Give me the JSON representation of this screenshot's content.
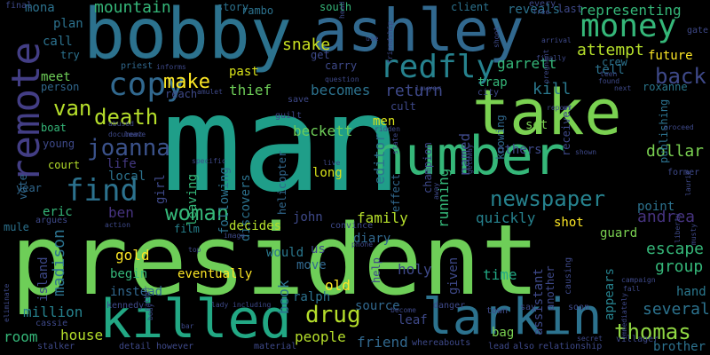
{
  "words": [
    {
      "text": "man",
      "color": "#1f9e89"
    },
    {
      "text": "president",
      "color": "#6ece58"
    },
    {
      "text": "bobby",
      "color": "#2c728e"
    },
    {
      "text": "ashley",
      "color": "#31688e"
    },
    {
      "text": "take",
      "color": "#7ad151"
    },
    {
      "text": "number",
      "color": "#35b779"
    },
    {
      "text": "killed",
      "color": "#22a884"
    },
    {
      "text": "larkin",
      "color": "#2c728e"
    },
    {
      "text": "remote",
      "color": "#433e85"
    },
    {
      "text": "redfly",
      "color": "#26828e"
    },
    {
      "text": "money",
      "color": "#35b779"
    },
    {
      "text": "copy",
      "color": "#31688e"
    },
    {
      "text": "find",
      "color": "#2c728e"
    },
    {
      "text": "make",
      "color": "#fde725"
    },
    {
      "text": "joanna",
      "color": "#3b528b"
    },
    {
      "text": "death",
      "color": "#b5de2b"
    },
    {
      "text": "van",
      "color": "#b5de2b"
    },
    {
      "text": "woman",
      "color": "#35b779"
    },
    {
      "text": "newspaper",
      "color": "#26828e"
    },
    {
      "text": "thomas",
      "color": "#90d743"
    },
    {
      "text": "drug",
      "color": "#b5de2b"
    },
    {
      "text": "back",
      "color": "#3e4989"
    },
    {
      "text": "mountain",
      "color": "#35b779"
    },
    {
      "text": "representing",
      "color": "#35b779"
    },
    {
      "text": "attempt",
      "color": "#b5de2b"
    },
    {
      "text": "snake",
      "color": "#c8e020"
    },
    {
      "text": "garrett",
      "color": "#35b779"
    },
    {
      "text": "past",
      "color": "#d8e219"
    },
    {
      "text": "thief",
      "color": "#6ece58"
    },
    {
      "text": "becomes",
      "color": "#2c728e"
    },
    {
      "text": "return",
      "color": "#3e4989"
    },
    {
      "text": "trap",
      "color": "#35b779"
    },
    {
      "text": "kill",
      "color": "#2a788e"
    },
    {
      "text": "meet",
      "color": "#6ece58"
    },
    {
      "text": "life",
      "color": "#443983"
    },
    {
      "text": "local",
      "color": "#2c728e"
    },
    {
      "text": "beckett",
      "color": "#6ece58"
    },
    {
      "text": "editor",
      "color": "#2c728e"
    },
    {
      "text": "running",
      "color": "#35b779"
    },
    {
      "text": "named",
      "color": "#3e4989"
    },
    {
      "text": "others",
      "color": "#3e4989"
    },
    {
      "text": "dollar",
      "color": "#7ad151"
    },
    {
      "text": "quickly",
      "color": "#26828e"
    },
    {
      "text": "family",
      "color": "#b5de2b"
    },
    {
      "text": "andrea",
      "color": "#46337f"
    },
    {
      "text": "escape",
      "color": "#35b779"
    },
    {
      "text": "ben",
      "color": "#46337f"
    },
    {
      "text": "eric",
      "color": "#35b779"
    },
    {
      "text": "madison",
      "color": "#2c728e"
    },
    {
      "text": "gold",
      "color": "#fde725"
    },
    {
      "text": "island",
      "color": "#3e4989"
    },
    {
      "text": "begin",
      "color": "#35b779"
    },
    {
      "text": "instead",
      "color": "#31688e"
    },
    {
      "text": "million",
      "color": "#26828e"
    },
    {
      "text": "house",
      "color": "#b5de2b"
    },
    {
      "text": "room",
      "color": "#35b779"
    },
    {
      "text": "people",
      "color": "#b5de2b"
    },
    {
      "text": "friend",
      "color": "#31688e"
    },
    {
      "text": "book",
      "color": "#2c728e"
    },
    {
      "text": "ralph",
      "color": "#2c728e"
    },
    {
      "text": "old",
      "color": "#fde725"
    },
    {
      "text": "holy",
      "color": "#3e4989"
    },
    {
      "text": "time",
      "color": "#22a884"
    },
    {
      "text": "appears",
      "color": "#26828e"
    },
    {
      "text": "several",
      "color": "#2c728e"
    },
    {
      "text": "group",
      "color": "#35b779"
    },
    {
      "text": "hand",
      "color": "#2a788e"
    },
    {
      "text": "girl",
      "color": "#3e4989"
    },
    {
      "text": "leaving",
      "color": "#35b779"
    },
    {
      "text": "discovers",
      "color": "#2c728e"
    },
    {
      "text": "following",
      "color": "#2c728e"
    },
    {
      "text": "john",
      "color": "#3e4989"
    },
    {
      "text": "long",
      "color": "#d8e219"
    },
    {
      "text": "eventually",
      "color": "#fde725"
    },
    {
      "text": "shot",
      "color": "#fde725"
    },
    {
      "text": "future",
      "color": "#fde725"
    },
    {
      "text": "roxanne",
      "color": "#2a788e"
    },
    {
      "text": "tell",
      "color": "#2c728e"
    },
    {
      "text": "crew",
      "color": "#2c728e"
    },
    {
      "text": "plan",
      "color": "#2c728e"
    },
    {
      "text": "call",
      "color": "#2c728e"
    },
    {
      "text": "try",
      "color": "#2c728e"
    },
    {
      "text": "mona",
      "color": "#2c728e"
    },
    {
      "text": "boat",
      "color": "#35b779"
    },
    {
      "text": "person",
      "color": "#31688e"
    },
    {
      "text": "young",
      "color": "#3e4989"
    },
    {
      "text": "court",
      "color": "#b5de2b"
    },
    {
      "text": "vote",
      "color": "#31688e"
    },
    {
      "text": "year",
      "color": "#31688e"
    },
    {
      "text": "mule",
      "color": "#2c728e"
    },
    {
      "text": "film",
      "color": "#26828e"
    },
    {
      "text": "decides",
      "color": "#b5de2b"
    },
    {
      "text": "would",
      "color": "#2a788e"
    },
    {
      "text": "move",
      "color": "#31688e"
    },
    {
      "text": "diary",
      "color": "#31688e"
    },
    {
      "text": "us",
      "color": "#3e4989"
    },
    {
      "text": "source",
      "color": "#31688e"
    },
    {
      "text": "leaf",
      "color": "#3e4989"
    },
    {
      "text": "bag",
      "color": "#7ad151"
    },
    {
      "text": "given",
      "color": "#3e4989"
    },
    {
      "text": "assistant",
      "color": "#3e4989"
    },
    {
      "text": "guard",
      "color": "#7ad151"
    },
    {
      "text": "point",
      "color": "#2c728e"
    },
    {
      "text": "brother",
      "color": "#2c728e"
    },
    {
      "text": "story",
      "color": "#2c728e"
    },
    {
      "text": "rambo",
      "color": "#2c728e"
    },
    {
      "text": "south",
      "color": "#35b779"
    },
    {
      "text": "client",
      "color": "#2c728e"
    },
    {
      "text": "reveals",
      "color": "#2c728e"
    },
    {
      "text": "last",
      "color": "#3e4989"
    },
    {
      "text": "get",
      "color": "#3e4989"
    },
    {
      "text": "carry",
      "color": "#3e4989"
    },
    {
      "text": "cult",
      "color": "#3e4989"
    },
    {
      "text": "men",
      "color": "#d8e219"
    },
    {
      "text": "reach",
      "color": "#3e4989"
    },
    {
      "text": "priest",
      "color": "#31688e"
    },
    {
      "text": "save",
      "color": "#3e4989"
    },
    {
      "text": "guilt",
      "color": "#3e4989"
    },
    {
      "text": "city",
      "color": "#3e4989"
    },
    {
      "text": "set",
      "color": "#7ad151"
    },
    {
      "text": "knowing",
      "color": "#31688e"
    },
    {
      "text": "receives",
      "color": "#3e4989"
    },
    {
      "text": "champion",
      "color": "#3e4989"
    },
    {
      "text": "effect",
      "color": "#31688e"
    },
    {
      "text": "state",
      "color": "#3e4989"
    },
    {
      "text": "helicopter",
      "color": "#31688e"
    },
    {
      "text": "help",
      "color": "#3e4989"
    },
    {
      "text": "causing",
      "color": "#3e4989"
    },
    {
      "text": "another",
      "color": "#3e4989"
    },
    {
      "text": "publishing",
      "color": "#2c728e"
    },
    {
      "text": "town",
      "color": "#3e4989"
    },
    {
      "text": "soon",
      "color": "#3e4989"
    },
    {
      "text": "say",
      "color": "#3e4989"
    },
    {
      "text": "lead",
      "color": "#3e4989"
    },
    {
      "text": "also",
      "color": "#3e4989"
    },
    {
      "text": "relationship",
      "color": "#3e4989"
    },
    {
      "text": "villager",
      "color": "#3e4989"
    },
    {
      "text": "secret",
      "color": "#3e4989"
    },
    {
      "text": "former",
      "color": "#3e4989"
    },
    {
      "text": "whereabouts",
      "color": "#3e4989"
    },
    {
      "text": "material",
      "color": "#3e4989"
    },
    {
      "text": "detail",
      "color": "#3e4989"
    },
    {
      "text": "however",
      "color": "#3e4989"
    },
    {
      "text": "stalker",
      "color": "#3e4989"
    },
    {
      "text": "cassie",
      "color": "#3e4989"
    },
    {
      "text": "kennedy",
      "color": "#3e4989"
    },
    {
      "text": "argues",
      "color": "#3e4989"
    },
    {
      "text": "final",
      "color": "#3e4989"
    },
    {
      "text": "every",
      "color": "#3e4989"
    },
    {
      "text": "free",
      "color": "#3e4989"
    },
    {
      "text": "gate",
      "color": "#3e4989"
    },
    {
      "text": "lawyer",
      "color": "#3e4989"
    },
    {
      "text": "document",
      "color": "#3e4989"
    },
    {
      "text": "abused",
      "color": "#3e4989"
    },
    {
      "text": "report",
      "color": "#3e4989"
    },
    {
      "text": "found",
      "color": "#3e4989"
    },
    {
      "text": "next",
      "color": "#3e4989"
    },
    {
      "text": "laurie",
      "color": "#3e4989"
    },
    {
      "text": "action",
      "color": "#3e4989"
    },
    {
      "text": "convince",
      "color": "#3e4989"
    },
    {
      "text": "phone",
      "color": "#3e4989"
    },
    {
      "text": "danger",
      "color": "#3e4989"
    },
    {
      "text": "become",
      "color": "#3e4989"
    },
    {
      "text": "fall",
      "color": "#3e4989"
    },
    {
      "text": "campaign",
      "color": "#3e4989"
    },
    {
      "text": "immediately",
      "color": "#3e4989"
    },
    {
      "text": "eliminate",
      "color": "#3e4989"
    },
    {
      "text": "amulet",
      "color": "#3e4989"
    },
    {
      "text": "question",
      "color": "#3e4989"
    },
    {
      "text": "specific",
      "color": "#3e4989"
    },
    {
      "text": "arrival",
      "color": "#3e4989"
    },
    {
      "text": "pregnant",
      "color": "#3e4989"
    },
    {
      "text": "friendship",
      "color": "#3e4989"
    },
    {
      "text": "ridden",
      "color": "#3e4989"
    },
    {
      "text": "shown",
      "color": "#3e4989"
    },
    {
      "text": "getaway",
      "color": "#3e4989"
    },
    {
      "text": "proceed",
      "color": "#3e4989"
    },
    {
      "text": "liberty",
      "color": "#3e4989"
    },
    {
      "text": "live",
      "color": "#3e4989"
    },
    {
      "text": "top",
      "color": "#3e4989"
    },
    {
      "text": "lady",
      "color": "#3e4989"
    },
    {
      "text": "including",
      "color": "#3e4989"
    },
    {
      "text": "bar",
      "color": "#3e4989"
    },
    {
      "text": "rather",
      "color": "#3e4989"
    },
    {
      "text": "body",
      "color": "#3e4989"
    },
    {
      "text": "head",
      "color": "#3e4989"
    },
    {
      "text": "finally",
      "color": "#3e4989"
    },
    {
      "text": "teen",
      "color": "#3e4989"
    },
    {
      "text": "shoot",
      "color": "#3e4989"
    },
    {
      "text": "leave",
      "color": "#3e4989"
    },
    {
      "text": "informs",
      "color": "#3e4989"
    },
    {
      "text": "use",
      "color": "#3e4989"
    },
    {
      "text": "image",
      "color": "#3e4989"
    },
    {
      "text": "away",
      "color": "#3e4989"
    },
    {
      "text": "musty",
      "color": "#3e4989"
    }
  ]
}
